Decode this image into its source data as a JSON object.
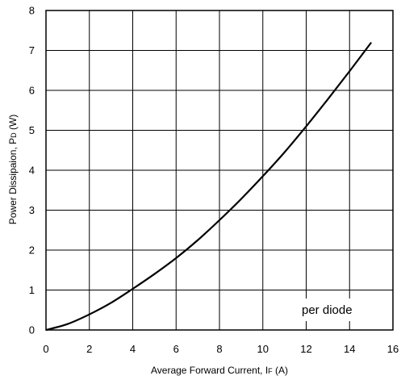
{
  "chart_data": {
    "type": "line",
    "title": "",
    "xlabel_main": "Average Forward Current, I",
    "xlabel_sub": "F",
    "xlabel_unit": " (A)",
    "ylabel_main": "Power Dissipaion, P",
    "ylabel_sub": "D",
    "ylabel_unit": " (W)",
    "xlim": [
      0,
      16
    ],
    "ylim": [
      0,
      8
    ],
    "xticks": [
      0,
      2,
      4,
      6,
      8,
      10,
      12,
      14,
      16
    ],
    "yticks": [
      0,
      1,
      2,
      3,
      4,
      5,
      6,
      7,
      8
    ],
    "grid": true,
    "annotation": "per diode",
    "series": [
      {
        "x": [
          0,
          1,
          2,
          3,
          4,
          5,
          6,
          7,
          8,
          9,
          10,
          11,
          12,
          13,
          14,
          15
        ],
        "y": [
          0,
          0.15,
          0.39,
          0.68,
          1.03,
          1.4,
          1.8,
          2.25,
          2.75,
          3.28,
          3.85,
          4.45,
          5.1,
          5.78,
          6.48,
          7.2
        ]
      }
    ]
  }
}
